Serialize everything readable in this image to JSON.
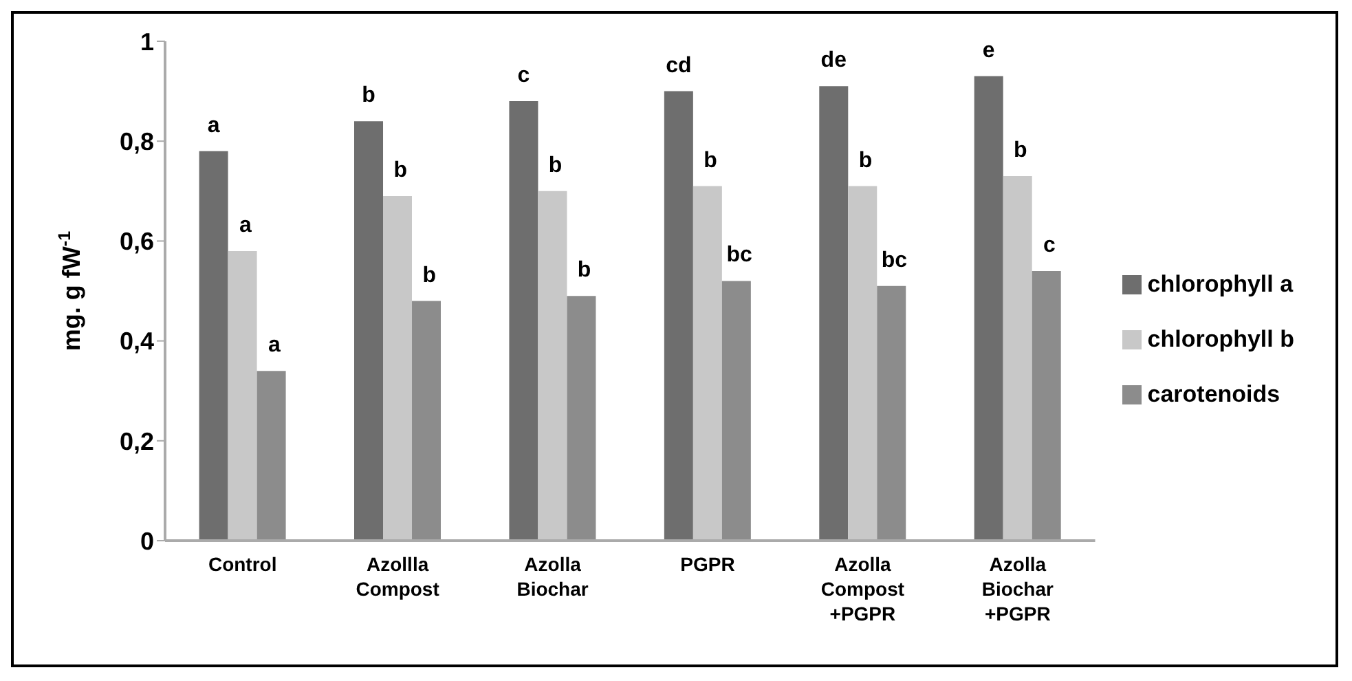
{
  "chart_data": {
    "type": "bar",
    "ylabel": "mg. g fW$^{-1}$",
    "categories": [
      "Control",
      "Azollla\nCompost",
      "Azolla\nBiochar",
      "PGPR",
      "Azolla\nCompost\n+PGPR",
      "Azolla\nBiochar\n+PGPR"
    ],
    "series": [
      {
        "name": "chlorophyll a",
        "color": "#6e6e6e",
        "values": [
          0.78,
          0.84,
          0.88,
          0.9,
          0.91,
          0.93
        ]
      },
      {
        "name": "chlorophyll b",
        "color": "#c8c8c8",
        "values": [
          0.58,
          0.69,
          0.7,
          0.71,
          0.71,
          0.73
        ]
      },
      {
        "name": "carotenoids",
        "color": "#8c8c8c",
        "values": [
          0.34,
          0.48,
          0.49,
          0.52,
          0.51,
          0.54
        ]
      }
    ],
    "ylim": [
      0,
      1
    ],
    "yticks": [
      0,
      {
        "value": 0.2,
        "label": "0,2"
      },
      {
        "value": 0.4,
        "label": "0,4"
      },
      {
        "value": 0.6,
        "label": "0,6"
      },
      {
        "value": 0.8,
        "label": "0,8"
      },
      1
    ],
    "legend": "right",
    "annotations": [
      "a",
      "a",
      "a",
      "b",
      "b",
      "b",
      "c",
      "b",
      "b",
      "cd",
      "b",
      "bc",
      "de",
      "b",
      "bc",
      "e",
      "b",
      "c"
    ]
  }
}
